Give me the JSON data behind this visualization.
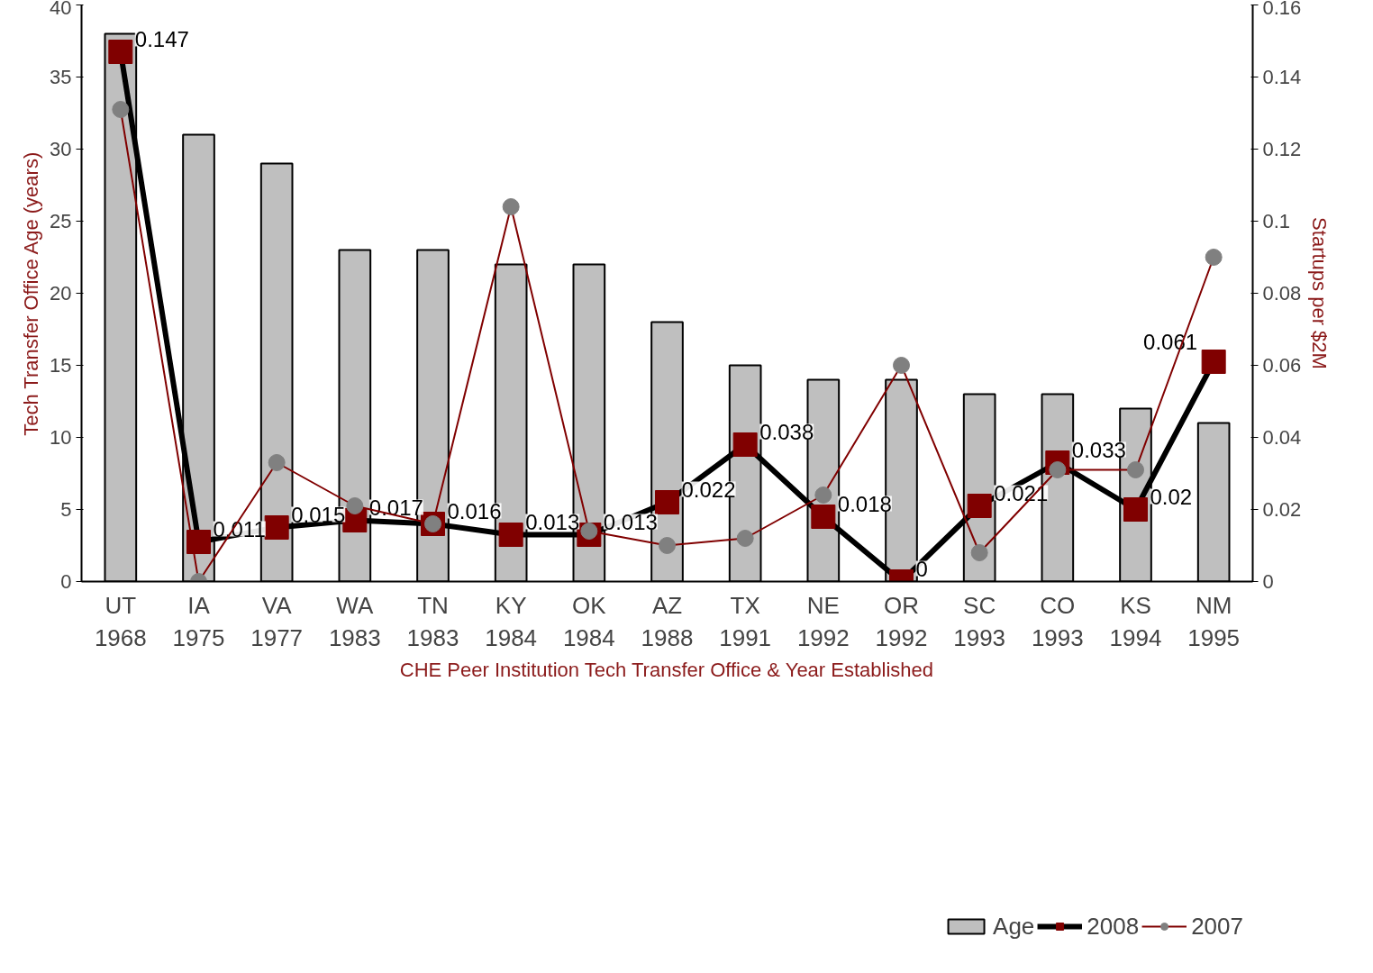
{
  "chart_data": {
    "type": "bar",
    "xlabel": "CHE Peer Institution Tech Transfer Office & Year Established",
    "ylabel": "Tech Transfer Office Age (years)",
    "y2label": "Startups per $2M",
    "categories": [
      "UT\n1968",
      "IA\n1975",
      "VA\n1977",
      "WA\n1983",
      "TN\n1983",
      "KY\n1984",
      "OK\n1984",
      "AZ\n1988",
      "TX\n1991",
      "NE\n1992",
      "OR\n1992",
      "SC\n1993",
      "CO\n1993",
      "KS\n1994",
      "NM\n1995"
    ],
    "series": [
      {
        "name": "Age",
        "color": "#bfbfbf",
        "values": [
          38,
          31,
          29,
          23,
          23,
          22,
          22,
          18,
          15,
          14,
          14,
          13,
          13,
          12,
          11
        ]
      },
      {
        "name": "2008",
        "type": "line",
        "axis": "y2",
        "color": "#000000",
        "colors": [
          "#800000",
          "#800000",
          "#800000",
          "#800000",
          "#800000",
          "#800000",
          "#800000",
          "#800000",
          "#800000",
          "#800000",
          "#800000",
          "#800000",
          "#800000",
          "#800000",
          "#800000"
        ],
        "marker": "square",
        "values": [
          0.147,
          0.011,
          0.015,
          0.017,
          0.016,
          0.013,
          0.013,
          0.022,
          0.038,
          0.018,
          0,
          0.021,
          0.033,
          0.02,
          0.061
        ],
        "value_labels": [
          "0.147",
          "0.011",
          "0.015",
          "0.017",
          "0.016",
          "0.013",
          "0.013",
          "0.022",
          "0.038",
          "0.018",
          "0",
          "0.021",
          "0.033",
          "0.02",
          "0.061"
        ]
      },
      {
        "name": "2007",
        "type": "line",
        "axis": "y2",
        "color": "#800000",
        "colors": [
          "#808080",
          "#808080",
          "#808080",
          "#808080",
          "#808080",
          "#808080",
          "#808080",
          "#808080",
          "#808080",
          "#808080",
          "#808080",
          "#808080",
          "#808080",
          "#808080",
          "#808080"
        ],
        "marker": "circle",
        "values": [
          0.131,
          0,
          0.033,
          0.021,
          0.016,
          0.104,
          0.014,
          0.01,
          0.012,
          0.024,
          0.06,
          0.008,
          0.031,
          0.031,
          0.09
        ]
      }
    ],
    "ylim": [
      0,
      40
    ],
    "yticks": [
      0,
      5,
      10,
      15,
      20,
      25,
      30,
      35,
      40
    ],
    "y2lim": [
      0,
      0.16
    ],
    "y2ticks": [
      0,
      0.02,
      0.04,
      0.06,
      0.08,
      0.1,
      0.12,
      0.14,
      0.16
    ],
    "grid": false,
    "legend": "bottom"
  }
}
